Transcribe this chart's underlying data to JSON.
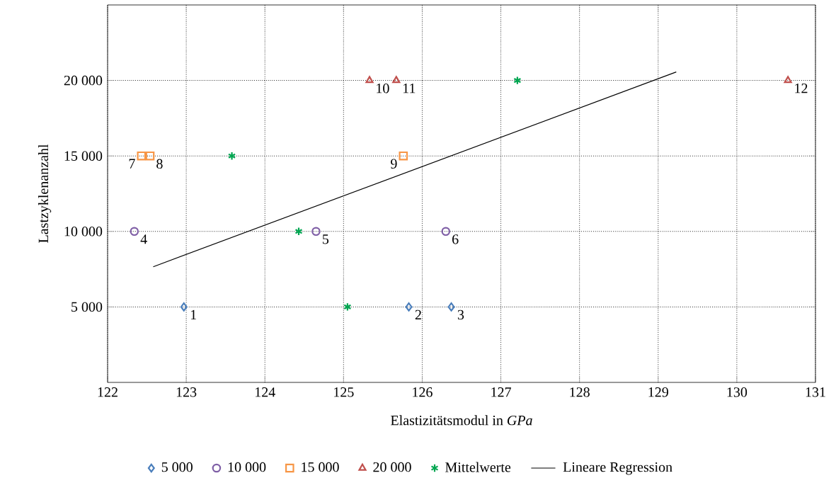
{
  "chart_data": {
    "type": "scatter",
    "xlabel": "Elastizitätsmodul in *GPa*",
    "ylabel": "Lastzyklenanzahl",
    "xlim": [
      122,
      131
    ],
    "ylim": [
      0,
      25000
    ],
    "xticks": [
      122,
      123,
      124,
      125,
      126,
      127,
      128,
      129,
      130,
      131
    ],
    "yticks": [
      {
        "value": 5000,
        "label": "5 000"
      },
      {
        "value": 10000,
        "label": "10 000"
      },
      {
        "value": 15000,
        "label": "15 000"
      },
      {
        "value": 20000,
        "label": "20 000"
      }
    ],
    "grid": true,
    "legend": "bottom",
    "series": [
      {
        "name": "5 000",
        "color": "#4a7ebb",
        "marker": "diamond",
        "x": [
          122.97,
          125.83,
          126.37
        ],
        "values": [
          5000,
          5000,
          5000
        ]
      },
      {
        "name": "10 000",
        "color": "#7f5fa6",
        "marker": "circle",
        "x": [
          122.34,
          124.65,
          126.3
        ],
        "values": [
          10000,
          10000,
          10000
        ]
      },
      {
        "name": "15 000",
        "color": "#f79646",
        "marker": "square",
        "x": [
          122.43,
          122.54,
          125.76
        ],
        "values": [
          15000,
          15000,
          15000
        ]
      },
      {
        "name": "20 000",
        "color": "#c0504d",
        "marker": "triangle",
        "x": [
          125.33,
          125.67,
          130.65
        ],
        "values": [
          20000,
          20000,
          20000
        ]
      },
      {
        "name": "Mittelwerte",
        "color": "#00a651",
        "marker": "cross",
        "x": [
          125.05,
          124.43,
          123.58,
          127.21
        ],
        "values": [
          5000,
          10000,
          15000,
          20000
        ]
      },
      {
        "name": "Lineare Regression",
        "type": "line",
        "color": "#000000",
        "marker": "none",
        "x": [
          122.58,
          129.23
        ],
        "values": [
          7660,
          20560
        ]
      }
    ],
    "annotations": [
      {
        "text": "1",
        "x": 122.97,
        "y": 5000
      },
      {
        "text": "2",
        "x": 125.83,
        "y": 5000
      },
      {
        "text": "3",
        "x": 126.37,
        "y": 5000
      },
      {
        "text": "4",
        "x": 122.34,
        "y": 10000
      },
      {
        "text": "5",
        "x": 124.65,
        "y": 10000
      },
      {
        "text": "6",
        "x": 126.3,
        "y": 10000
      },
      {
        "text": "7",
        "x": 122.43,
        "y": 15000
      },
      {
        "text": "8",
        "x": 122.54,
        "y": 15000
      },
      {
        "text": "9",
        "x": 125.76,
        "y": 15000
      },
      {
        "text": "10",
        "x": 125.33,
        "y": 20000
      },
      {
        "text": "11",
        "x": 125.67,
        "y": 20000
      },
      {
        "text": "12",
        "x": 130.65,
        "y": 20000
      }
    ]
  }
}
